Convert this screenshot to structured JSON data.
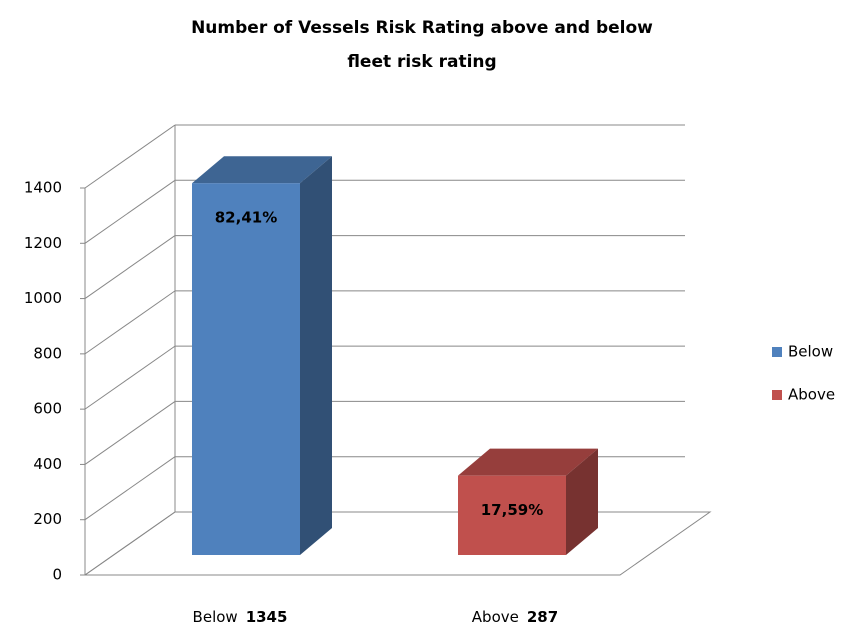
{
  "chart_data": {
    "type": "bar3d",
    "title": [
      "Number of Vessels Risk Rating above and below",
      "fleet risk rating"
    ],
    "categories": [
      "Below",
      "Above"
    ],
    "values": [
      1345,
      287
    ],
    "colors": [
      "#4f81bd",
      "#c0504d"
    ],
    "shares": [
      82.41,
      17.59
    ],
    "share_labels": [
      "82,41%",
      "17,59%"
    ],
    "ylim": [
      0,
      1400
    ],
    "yticks": [
      0,
      200,
      400,
      600,
      800,
      1000,
      1200,
      1400
    ],
    "grid": true,
    "legend": "right"
  }
}
